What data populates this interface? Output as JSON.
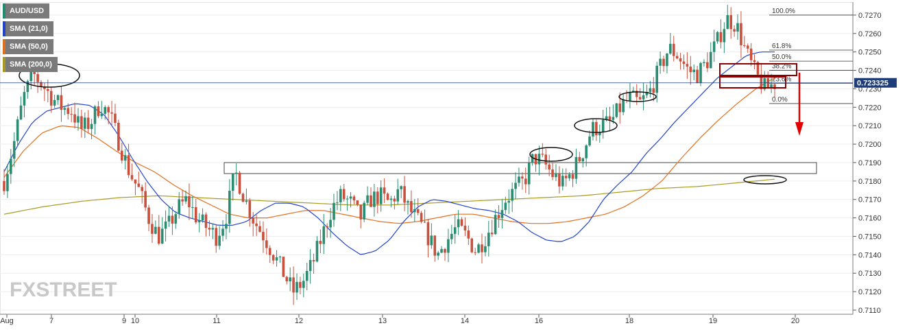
{
  "legend": {
    "items": [
      {
        "label": "AUD/USD",
        "color": "#1e8c6e"
      },
      {
        "label": "SMA (21,0)",
        "color": "#2244cc"
      },
      {
        "label": "SMA (50,0)",
        "color": "#e07020"
      },
      {
        "label": "SMA (200,0)",
        "color": "#a89a20"
      }
    ]
  },
  "price_badge": "0.723325",
  "watermark": "FXSTREET",
  "chart_data": {
    "type": "candlestick",
    "symbol": "AUD/USD",
    "timeframe": "hourly",
    "ylim": [
      0.711,
      0.7275
    ],
    "y_ticks": [
      "0.7110",
      "0.7120",
      "0.7130",
      "0.7140",
      "0.7150",
      "0.7160",
      "0.7170",
      "0.7180",
      "0.7190",
      "0.7200",
      "0.7210",
      "0.7220",
      "0.7230",
      "0.7240",
      "0.7250",
      "0.7260",
      "0.7270"
    ],
    "x_tick_labels": [
      "Aug",
      "7",
      "9",
      "10",
      "11",
      "12",
      "13",
      "14",
      "16",
      "18",
      "19",
      "20"
    ],
    "current_price": 0.723325,
    "fibonacci": [
      {
        "label": "100.0%",
        "price": 0.727
      },
      {
        "label": "61.8%",
        "price": 0.7251
      },
      {
        "label": "50.0%",
        "price": 0.7245
      },
      {
        "label": "38.2%",
        "price": 0.724
      },
      {
        "label": "23.6%",
        "price": 0.7233
      },
      {
        "label": "0.0%",
        "price": 0.7222
      }
    ],
    "close_path": [
      0.718,
      0.72,
      0.7225,
      0.7238,
      0.7232,
      0.7225,
      0.722,
      0.7218,
      0.7208,
      0.7212,
      0.7222,
      0.7215,
      0.72,
      0.7185,
      0.7175,
      0.716,
      0.715,
      0.7155,
      0.7165,
      0.717,
      0.716,
      0.7155,
      0.715,
      0.716,
      0.7185,
      0.717,
      0.7158,
      0.715,
      0.714,
      0.713,
      0.712,
      0.7125,
      0.7135,
      0.715,
      0.7165,
      0.7172,
      0.7168,
      0.716,
      0.717,
      0.7172,
      0.7168,
      0.7175,
      0.7165,
      0.7158,
      0.715,
      0.714,
      0.7148,
      0.7155,
      0.715,
      0.7142,
      0.715,
      0.716,
      0.717,
      0.7175,
      0.718,
      0.7193,
      0.719,
      0.7183,
      0.7178,
      0.7185,
      0.7195,
      0.7208,
      0.721,
      0.7212,
      0.722,
      0.7225,
      0.7222,
      0.7228,
      0.724,
      0.7252,
      0.7248,
      0.724,
      0.7238,
      0.7245,
      0.7255,
      0.7268,
      0.7265,
      0.725,
      0.7238,
      0.723,
      0.7233
    ],
    "sma21": [
      0.7185,
      0.72,
      0.7212,
      0.7218,
      0.722,
      0.7222,
      0.7221,
      0.7216,
      0.7205,
      0.7192,
      0.718,
      0.717,
      0.7163,
      0.716,
      0.7158,
      0.7156,
      0.7156,
      0.7158,
      0.7164,
      0.7168,
      0.7168,
      0.7166,
      0.716,
      0.7152,
      0.7145,
      0.714,
      0.7142,
      0.7148,
      0.7158,
      0.7166,
      0.717,
      0.7169,
      0.7167,
      0.7165,
      0.7164,
      0.7162,
      0.7158,
      0.7152,
      0.7148,
      0.7147,
      0.715,
      0.7158,
      0.717,
      0.7178,
      0.7185,
      0.7195,
      0.7203,
      0.7212,
      0.722,
      0.7228,
      0.7236,
      0.7242,
      0.7248,
      0.725,
      0.725
    ],
    "sma50": [
      0.7182,
      0.7196,
      0.7206,
      0.721,
      0.7209,
      0.7203,
      0.7196,
      0.719,
      0.7185,
      0.7178,
      0.7172,
      0.7167,
      0.7162,
      0.716,
      0.716,
      0.7162,
      0.7164,
      0.7164,
      0.7162,
      0.716,
      0.7158,
      0.7157,
      0.7158,
      0.716,
      0.7162,
      0.7162,
      0.716,
      0.7158,
      0.7157,
      0.7157,
      0.7158,
      0.716,
      0.7162,
      0.7166,
      0.7172,
      0.718,
      0.7192,
      0.7203,
      0.7213,
      0.7222,
      0.723,
      0.7236
    ],
    "sma200": [
      0.7162,
      0.7166,
      0.7169,
      0.7171,
      0.7172,
      0.7171,
      0.717,
      0.7169,
      0.7168,
      0.7167,
      0.7167,
      0.7168,
      0.7169,
      0.717,
      0.7171,
      0.7172,
      0.7174,
      0.7176,
      0.7177,
      0.7179,
      0.7181
    ],
    "annotations": [
      "support-zone-rectangle",
      "resistance-boxes",
      "swing-highlight-ellipses",
      "downward-arrow"
    ]
  }
}
